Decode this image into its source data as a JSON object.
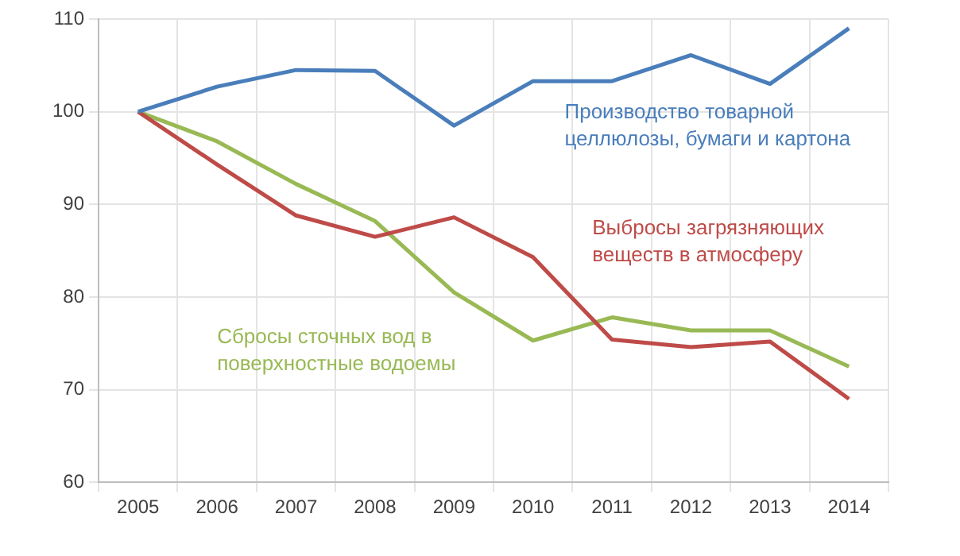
{
  "chart_data": {
    "type": "line",
    "categories": [
      "2005",
      "2006",
      "2007",
      "2008",
      "2009",
      "2010",
      "2011",
      "2012",
      "2013",
      "2014"
    ],
    "series": [
      {
        "name": "Производство товарной целлюлозы, бумаги и картона",
        "color": "#4a7ebb",
        "values": [
          100,
          102.7,
          104.5,
          104.4,
          98.5,
          103.3,
          103.3,
          106.1,
          103,
          109
        ]
      },
      {
        "name": "Выбросы загрязняющих веществ в атмосферу",
        "color": "#be4b48",
        "values": [
          100,
          94.3,
          88.8,
          86.5,
          88.6,
          84.3,
          75.4,
          74.6,
          75.2,
          69
        ]
      },
      {
        "name": "Сбросы сточных вод в поверхностные водоемы",
        "color": "#98b954",
        "values": [
          100,
          96.8,
          92.2,
          88.2,
          80.5,
          75.3,
          77.8,
          76.4,
          76.4,
          72.5
        ]
      }
    ],
    "ylim": [
      60,
      110
    ],
    "yticks": [
      60,
      70,
      80,
      90,
      100,
      110
    ],
    "grid": true,
    "legend": false,
    "marker": "none",
    "line_style": "solid"
  }
}
